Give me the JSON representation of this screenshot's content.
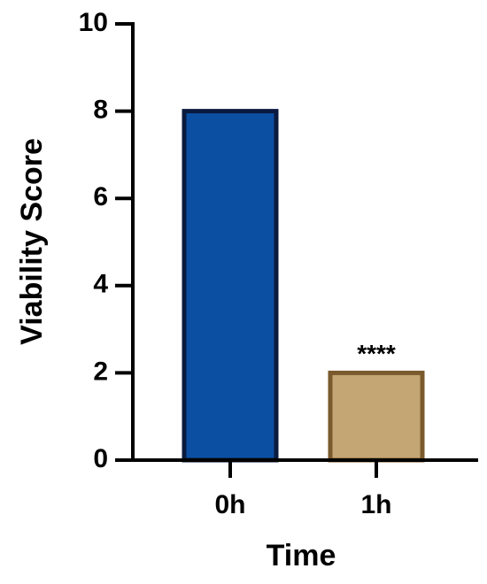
{
  "chart_data": {
    "type": "bar",
    "xlabel": "Time",
    "ylabel": "Viability Score",
    "categories": [
      "0h",
      "1h"
    ],
    "values": [
      8,
      2
    ],
    "colors": [
      "#0b4fa3",
      "#c4a574"
    ],
    "edgecolors": [
      "#0a1a3f",
      "#7a5a2c"
    ],
    "ylim": [
      0,
      10
    ],
    "yticks": [
      0,
      2,
      4,
      6,
      8,
      10
    ],
    "grid": false,
    "annotations": [
      {
        "text": "****",
        "x": "1h"
      }
    ]
  }
}
